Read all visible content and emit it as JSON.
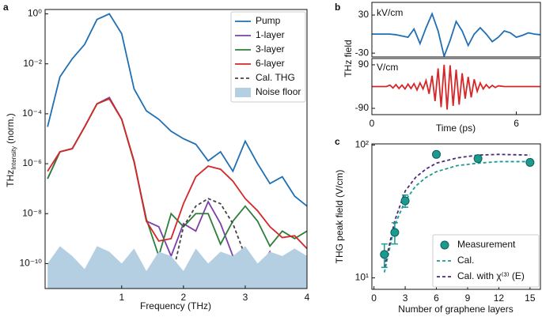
{
  "chart_data": [
    {
      "type": "line",
      "panel_label": "a",
      "x_label": "Frequency (THz)",
      "y_label": "THz",
      "y_label_sub": "Intensity",
      "y_label_unit": "(norm.)",
      "x": [
        -0.2,
        0,
        0.2,
        0.4,
        0.6,
        0.8,
        1.0,
        1.2,
        1.4,
        1.6,
        1.8,
        2.0,
        2.2,
        2.4,
        2.6,
        2.8,
        3.0,
        3.2,
        3.4,
        3.6,
        3.8,
        4.0
      ],
      "xlim": [
        -0.24,
        4.0
      ],
      "xticks": [
        1,
        2,
        3,
        4
      ],
      "ylim": [
        1e-11,
        1.5
      ],
      "log_y": true,
      "yticks": [
        {
          "value": 1,
          "label": "10⁰"
        },
        {
          "value": 0.01,
          "label": "10⁻²"
        },
        {
          "value": 0.0001,
          "label": "10⁻⁴"
        },
        {
          "value": 1e-06,
          "label": "10⁻⁶"
        },
        {
          "value": 1e-08,
          "label": "10⁻⁸"
        },
        {
          "value": 1e-10,
          "label": "10⁻¹⁰"
        }
      ],
      "legend": "upper right",
      "series": [
        {
          "name": "Pump",
          "color": "#1f6fb4",
          "style": "solid",
          "values": [
            3e-05,
            0.003,
            0.016,
            0.06,
            0.6,
            1,
            0.16,
            0.001,
            0.00013,
            6e-05,
            2e-05,
            1e-05,
            6e-06,
            1.3e-06,
            3e-06,
            5e-07,
            8e-06,
            1e-06,
            1.6e-07,
            3e-07,
            5e-08,
            2e-08
          ]
        },
        {
          "name": "1-layer",
          "color": "#7e3fa8",
          "style": "solid",
          "values": [
            2.5e-07,
            3e-06,
            4e-06,
            3e-05,
            0.00025,
            0.00045,
            6e-05,
            1.2e-06,
            5e-09,
            3e-09,
            2e-10,
            4e-09,
            2e-09,
            3e-08,
            4e-09,
            2e-10,
            1e-10,
            5e-11,
            3e-10,
            1.5e-11,
            1e-10,
            2e-10
          ]
        },
        {
          "name": "3-layer",
          "color": "#2e7d3a",
          "style": "solid",
          "values": [
            2.5e-07,
            3e-06,
            4e-06,
            3e-05,
            0.00025,
            0.0004,
            6e-05,
            1.2e-06,
            6e-09,
            2e-10,
            1e-08,
            3e-09,
            1e-08,
            1e-08,
            6e-10,
            5e-09,
            2e-08,
            5e-09,
            5e-10,
            2e-09,
            1e-09,
            2e-09
          ]
        },
        {
          "name": "6-layer",
          "color": "#d62728",
          "style": "solid",
          "values": [
            5e-07,
            3e-06,
            4e-06,
            3e-05,
            0.00025,
            0.0004,
            6e-05,
            1.3e-06,
            5e-09,
            8e-10,
            1e-09,
            2.5e-08,
            3e-07,
            8e-07,
            6e-07,
            2e-07,
            4e-08,
            1.3e-08,
            3e-09,
            1.1e-09,
            1.3e-09,
            4e-10
          ]
        },
        {
          "name": "Cal. THG",
          "color": "#444444",
          "style": "dashed",
          "values": [
            null,
            null,
            null,
            null,
            null,
            null,
            null,
            null,
            null,
            null,
            2e-11,
            3e-09,
            2e-08,
            4e-08,
            2.5e-08,
            4e-09,
            2e-10,
            1e-11,
            null,
            null,
            null,
            null
          ]
        },
        {
          "name": "Noise floor",
          "color": "#b4cfe2",
          "style": "area",
          "values": [
            1e-10,
            5e-10,
            2e-10,
            6e-11,
            5e-10,
            3e-10,
            1e-10,
            4e-10,
            5e-11,
            3e-10,
            2e-10,
            5e-11,
            4e-10,
            1e-10,
            3e-10,
            2e-10,
            5e-10,
            1e-10,
            3e-10,
            2e-10,
            4e-10,
            2e-10
          ]
        }
      ]
    },
    {
      "type": "line",
      "panel_label": "b",
      "y_label": "THz field",
      "unit_label": "kV/cm",
      "x": [
        0,
        0.25,
        0.5,
        0.75,
        1,
        1.25,
        1.5,
        1.75,
        2,
        2.25,
        2.5,
        2.75,
        3,
        3.25,
        3.5,
        3.75,
        4,
        4.25,
        4.5,
        4.75,
        5,
        5.25,
        5.5,
        5.75,
        6,
        6.25,
        6.5,
        6.75,
        7
      ],
      "xlim": [
        0,
        7
      ],
      "ylim": [
        -36,
        50
      ],
      "yticks": [
        30,
        -30
      ],
      "series": [
        {
          "color": "#1f6fb4",
          "style": "solid",
          "values": [
            0,
            0,
            0,
            0,
            -1,
            -3,
            -5,
            8,
            -15,
            10,
            32,
            5,
            -35,
            -10,
            20,
            5,
            -18,
            0,
            10,
            0,
            -12,
            -5,
            5,
            2,
            -5,
            -2,
            2,
            0,
            -1
          ]
        }
      ]
    },
    {
      "type": "line",
      "x_label": "Time (ps)",
      "unit_label": "V/cm",
      "x": [
        0,
        0.6,
        0.75,
        0.875,
        1.0,
        1.125,
        1.25,
        1.375,
        1.5,
        1.625,
        1.75,
        1.875,
        2.0,
        2.125,
        2.25,
        2.375,
        2.5,
        2.625,
        2.75,
        2.875,
        3.0,
        3.125,
        3.25,
        3.375,
        3.5,
        3.625,
        3.75,
        3.875,
        4.0,
        4.125,
        4.25,
        4.375,
        4.5,
        4.625,
        4.75,
        4.875,
        5.0,
        5.125,
        5.25,
        5.5,
        7
      ],
      "xlim": [
        0,
        7
      ],
      "xticks": [
        0,
        6
      ],
      "ylim": [
        -116,
        116
      ],
      "yticks": [
        90,
        -90
      ],
      "series": [
        {
          "color": "#d62728",
          "style": "solid",
          "values": [
            0,
            0,
            6,
            -6,
            8,
            -8,
            6,
            -10,
            10,
            -8,
            12,
            -14,
            15,
            -10,
            25,
            -30,
            45,
            -60,
            75,
            -85,
            90,
            -95,
            88,
            -80,
            70,
            -75,
            55,
            -50,
            40,
            -45,
            30,
            -20,
            15,
            -10,
            8,
            -6,
            5,
            -4,
            3,
            0,
            0
          ]
        }
      ]
    },
    {
      "type": "scatter",
      "panel_label": "c",
      "x_label": "Number of graphene layers",
      "y_label": "THG peak field (V/cm)",
      "xlim": [
        -0.2,
        16
      ],
      "xticks": [
        0,
        3,
        6,
        9,
        12,
        15
      ],
      "ylim": [
        8.2,
        102
      ],
      "log_y": true,
      "yticks": [
        {
          "value": 10,
          "label": "10¹"
        },
        {
          "value": 100,
          "label": "10²"
        }
      ],
      "legend": "lower right",
      "series": [
        {
          "name": "Measurement",
          "color": "#1b9a8f",
          "style": "marker",
          "x": [
            1,
            2,
            3,
            6,
            10,
            15
          ],
          "values": [
            15,
            22,
            38,
            85,
            79,
            74
          ],
          "errors": [
            3,
            4,
            4,
            4,
            4,
            3
          ]
        },
        {
          "name": "Cal.",
          "color": "#1b9a8f",
          "style": "dashed",
          "x": [
            1,
            2,
            3,
            4,
            5,
            6,
            8,
            10,
            12,
            15
          ],
          "values": [
            11,
            25,
            38,
            49,
            57,
            63,
            70,
            73,
            75,
            75
          ]
        },
        {
          "name": "Cal. with χ⁽³⁾ (E)",
          "color": "#4b2a7a",
          "style": "dashed",
          "x": [
            1,
            2,
            3,
            4,
            5,
            6,
            8,
            10,
            12,
            15
          ],
          "values": [
            12,
            27,
            45,
            57,
            66,
            73,
            80,
            84,
            85,
            84
          ]
        }
      ]
    }
  ]
}
